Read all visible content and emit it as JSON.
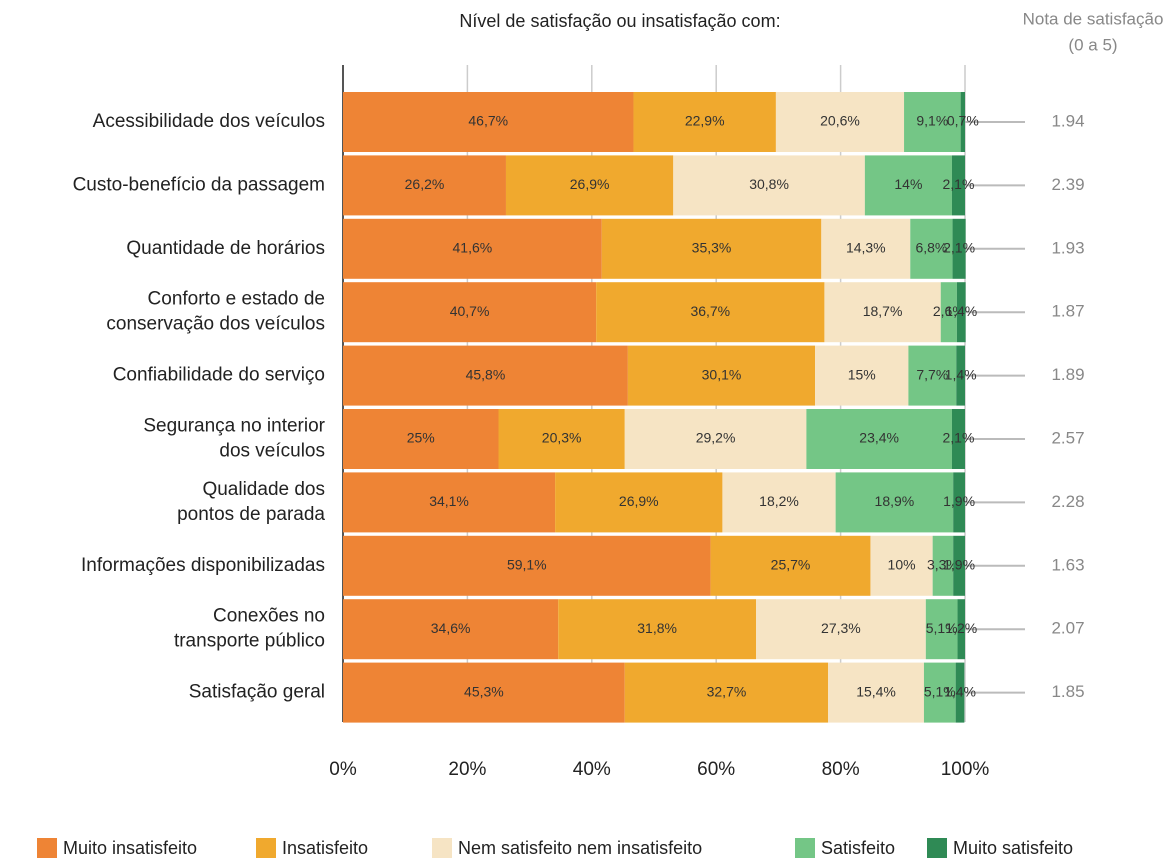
{
  "chart_data": {
    "type": "stacked-bar-horizontal",
    "title": "Nível de satisfação ou insatisfação com:",
    "score_title": [
      "Nota de satisfação",
      "(0 a 5)"
    ],
    "categories": [
      [
        "Acessibilidade dos veículos"
      ],
      [
        "Custo-benefício da passagem"
      ],
      [
        "Quantidade de horários"
      ],
      [
        "Conforto e estado de",
        "conservação dos veículos"
      ],
      [
        "Confiabilidade do serviço"
      ],
      [
        "Segurança no interior",
        "dos veículos"
      ],
      [
        "Qualidade dos",
        "pontos de parada"
      ],
      [
        "Informações disponibilizadas"
      ],
      [
        "Conexões no",
        "transporte público"
      ],
      [
        "Satisfação geral"
      ]
    ],
    "series": [
      {
        "name": "Muito insatisfeito",
        "color": "#ee8435",
        "values": [
          46.7,
          26.2,
          41.6,
          40.7,
          45.8,
          25,
          34.1,
          59.1,
          34.6,
          45.3
        ],
        "value_labels": [
          "46,7%",
          "26,2%",
          "41,6%",
          "40,7%",
          "45,8%",
          "25%",
          "34,1%",
          "59,1%",
          "34,6%",
          "45,3%"
        ]
      },
      {
        "name": "Insatisfeito",
        "color": "#f0a92e",
        "values": [
          22.9,
          26.9,
          35.3,
          36.7,
          30.1,
          20.3,
          26.9,
          25.7,
          31.8,
          32.7
        ],
        "value_labels": [
          "22,9%",
          "26,9%",
          "35,3%",
          "36,7%",
          "30,1%",
          "20,3%",
          "26,9%",
          "25,7%",
          "31,8%",
          "32,7%"
        ]
      },
      {
        "name": "Nem satisfeito nem insatisfeito",
        "color": "#f6e4c4",
        "values": [
          20.6,
          30.8,
          14.3,
          18.7,
          15,
          29.2,
          18.2,
          10,
          27.3,
          15.4
        ],
        "value_labels": [
          "20,6%",
          "30,8%",
          "14,3%",
          "18,7%",
          "15%",
          "29,2%",
          "18,2%",
          "10%",
          "27,3%",
          "15,4%"
        ]
      },
      {
        "name": "Satisfeito",
        "color": "#74c686",
        "values": [
          9.1,
          14,
          6.8,
          2.6,
          7.7,
          23.4,
          18.9,
          3.3,
          5.1,
          5.1
        ],
        "value_labels": [
          "9,1%",
          "14%",
          "6,8%",
          "2,6%",
          "7,7%",
          "23,4%",
          "18,9%",
          "3,3%",
          "5,1%",
          "5,1%"
        ]
      },
      {
        "name": "Muito satisfeito",
        "color": "#2f8a55",
        "values": [
          0.7,
          2.1,
          2.1,
          1.4,
          1.4,
          2.1,
          1.9,
          1.9,
          1.2,
          1.4
        ],
        "value_labels": [
          "0,7%",
          "2,1%",
          "2,1%",
          "1,4%",
          "1,4%",
          "2,1%",
          "1,9%",
          "1,9%",
          "1,2%",
          "1,4%"
        ]
      }
    ],
    "scores": [
      1.94,
      2.39,
      1.93,
      1.87,
      1.89,
      2.57,
      2.28,
      1.63,
      2.07,
      1.85
    ],
    "xlim": [
      0,
      100
    ],
    "xticks": [
      {
        "value": 0,
        "label": "0%"
      },
      {
        "value": 20,
        "label": "20%"
      },
      {
        "value": 40,
        "label": "40%"
      },
      {
        "value": 60,
        "label": "60%"
      },
      {
        "value": 80,
        "label": "80%"
      },
      {
        "value": 100,
        "label": "100%"
      }
    ],
    "grid": true
  }
}
